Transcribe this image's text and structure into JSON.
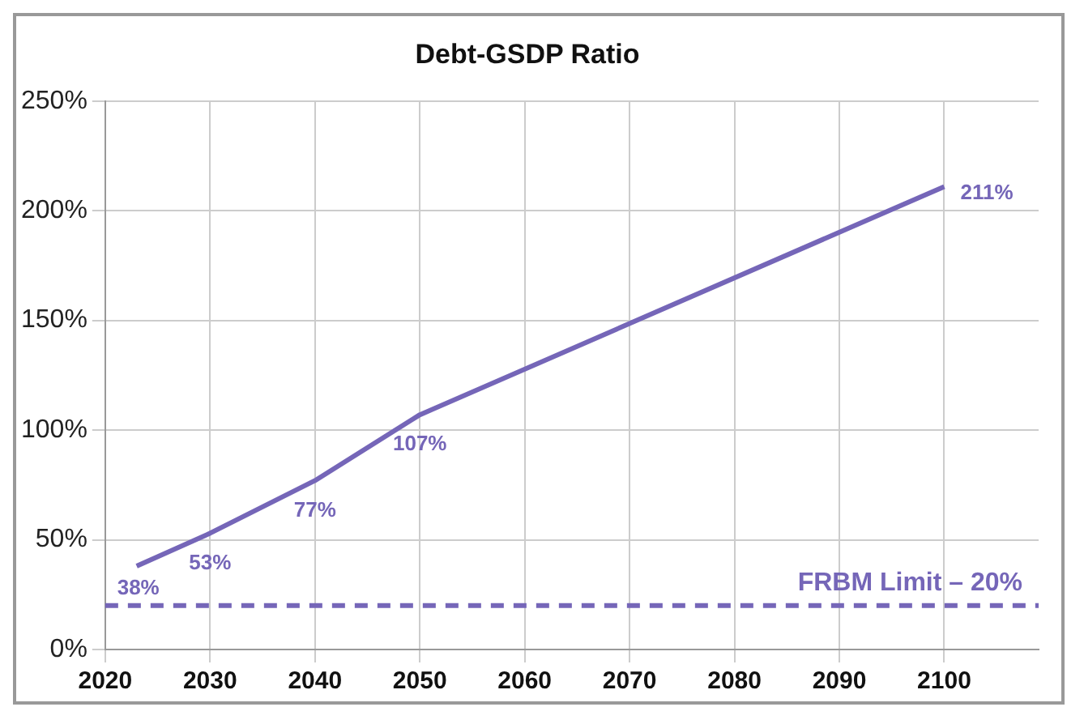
{
  "chart_data": {
    "type": "line",
    "title": "Debt-GSDP Ratio",
    "x": [
      2023,
      2030,
      2040,
      2050,
      2100
    ],
    "series": [
      {
        "color": "#7566b8",
        "values": [
          38,
          53,
          77,
          107,
          211
        ],
        "value_labels": [
          "38%",
          "53%",
          "77%",
          "107%",
          "211%"
        ]
      }
    ],
    "xlim": [
      2020,
      2109
    ],
    "xticks": [
      2020,
      2030,
      2040,
      2050,
      2060,
      2070,
      2080,
      2090,
      2100
    ],
    "ylim": [
      0,
      250
    ],
    "yticks": [
      {
        "value": 0,
        "label": "0%"
      },
      {
        "value": 50,
        "label": "50%"
      },
      {
        "value": 100,
        "label": "100%"
      },
      {
        "value": 150,
        "label": "150%"
      },
      {
        "value": 200,
        "label": "200%"
      },
      {
        "value": 250,
        "label": "250%"
      }
    ],
    "ref_lines": [
      {
        "axis": "y",
        "value": 20,
        "label": "FRBM Limit – 20%",
        "color": "#7566b8",
        "line_style": "dashed"
      }
    ],
    "grid": true,
    "legend": false,
    "marker": "none",
    "line_style": "solid"
  }
}
